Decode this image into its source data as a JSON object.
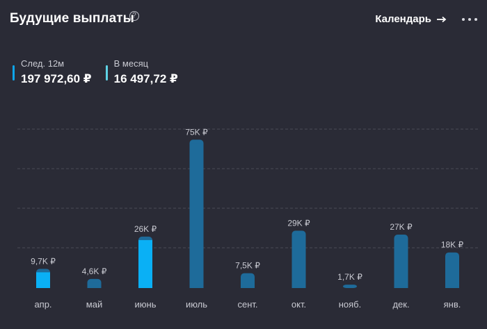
{
  "header": {
    "title": "Будущие выплаты",
    "help_icon": "question-circle-icon",
    "calendar_label": "Календарь",
    "calendar_icon": "arrow-right-icon",
    "more_icon": "more-horizontal-icon"
  },
  "stats": [
    {
      "label": "След. 12м",
      "value": "197 972,60 ₽",
      "color": "#0ea5e9"
    },
    {
      "label": "В месяц",
      "value": "16 497,72 ₽",
      "color": "#5fd3e6"
    }
  ],
  "colors": {
    "background": "#2a2b36",
    "bar_paid": "#0ab0f5",
    "bar_future": "#1e6b9a",
    "gridline": "#4a4b57"
  },
  "chart_data": {
    "type": "bar",
    "categories": [
      "апр.",
      "май",
      "июнь",
      "июль",
      "сент.",
      "окт.",
      "нояб.",
      "дек.",
      "янв."
    ],
    "values": [
      9700,
      4600,
      26000,
      75000,
      7500,
      29000,
      1700,
      27000,
      18000
    ],
    "data_labels": [
      "9,7K ₽",
      "4,6K ₽",
      "26K ₽",
      "75K ₽",
      "7,5K ₽",
      "29K ₽",
      "1,7K ₽",
      "27K ₽",
      "18K ₽"
    ],
    "highlighted": [
      true,
      false,
      true,
      false,
      false,
      false,
      false,
      false,
      false
    ],
    "ylim": [
      0,
      80000
    ],
    "grid": true,
    "title": "",
    "xlabel": "",
    "ylabel": ""
  }
}
